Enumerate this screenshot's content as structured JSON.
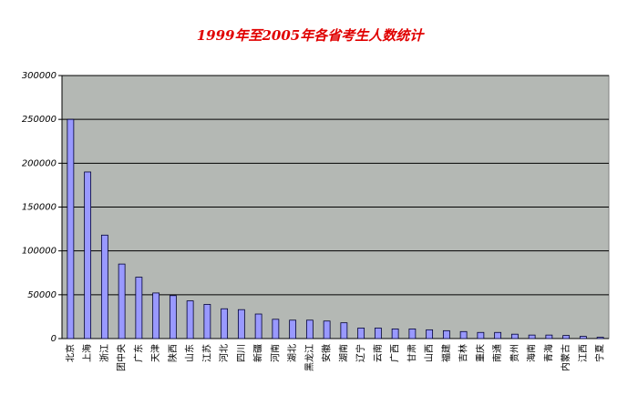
{
  "chart_data": {
    "type": "bar",
    "title": "1999年至2005年各省考生人数统计",
    "categories": [
      "北京",
      "上海",
      "浙江",
      "团中央",
      "广东",
      "天津",
      "陕西",
      "山东",
      "江苏",
      "河北",
      "四川",
      "新疆",
      "河南",
      "湖北",
      "黑龙江",
      "安徽",
      "湖南",
      "辽宁",
      "云南",
      "广西",
      "甘肃",
      "山西",
      "福建",
      "吉林",
      "重庆",
      "南通",
      "贵州",
      "海南",
      "青海",
      "内蒙古",
      "江西",
      "宁夏"
    ],
    "values": [
      250000,
      190000,
      118000,
      85000,
      70000,
      52000,
      49000,
      43000,
      39000,
      34000,
      33000,
      28000,
      22000,
      21000,
      21000,
      20000,
      18000,
      12000,
      12000,
      11000,
      11000,
      10000,
      9000,
      8000,
      7000,
      7000,
      5000,
      4000,
      4000,
      3500,
      2500,
      1500
    ],
    "color": "#9999ff",
    "ylim": [
      0,
      300000
    ],
    "yticks": [
      0,
      50000,
      100000,
      150000,
      200000,
      250000,
      300000
    ],
    "grid": true
  }
}
